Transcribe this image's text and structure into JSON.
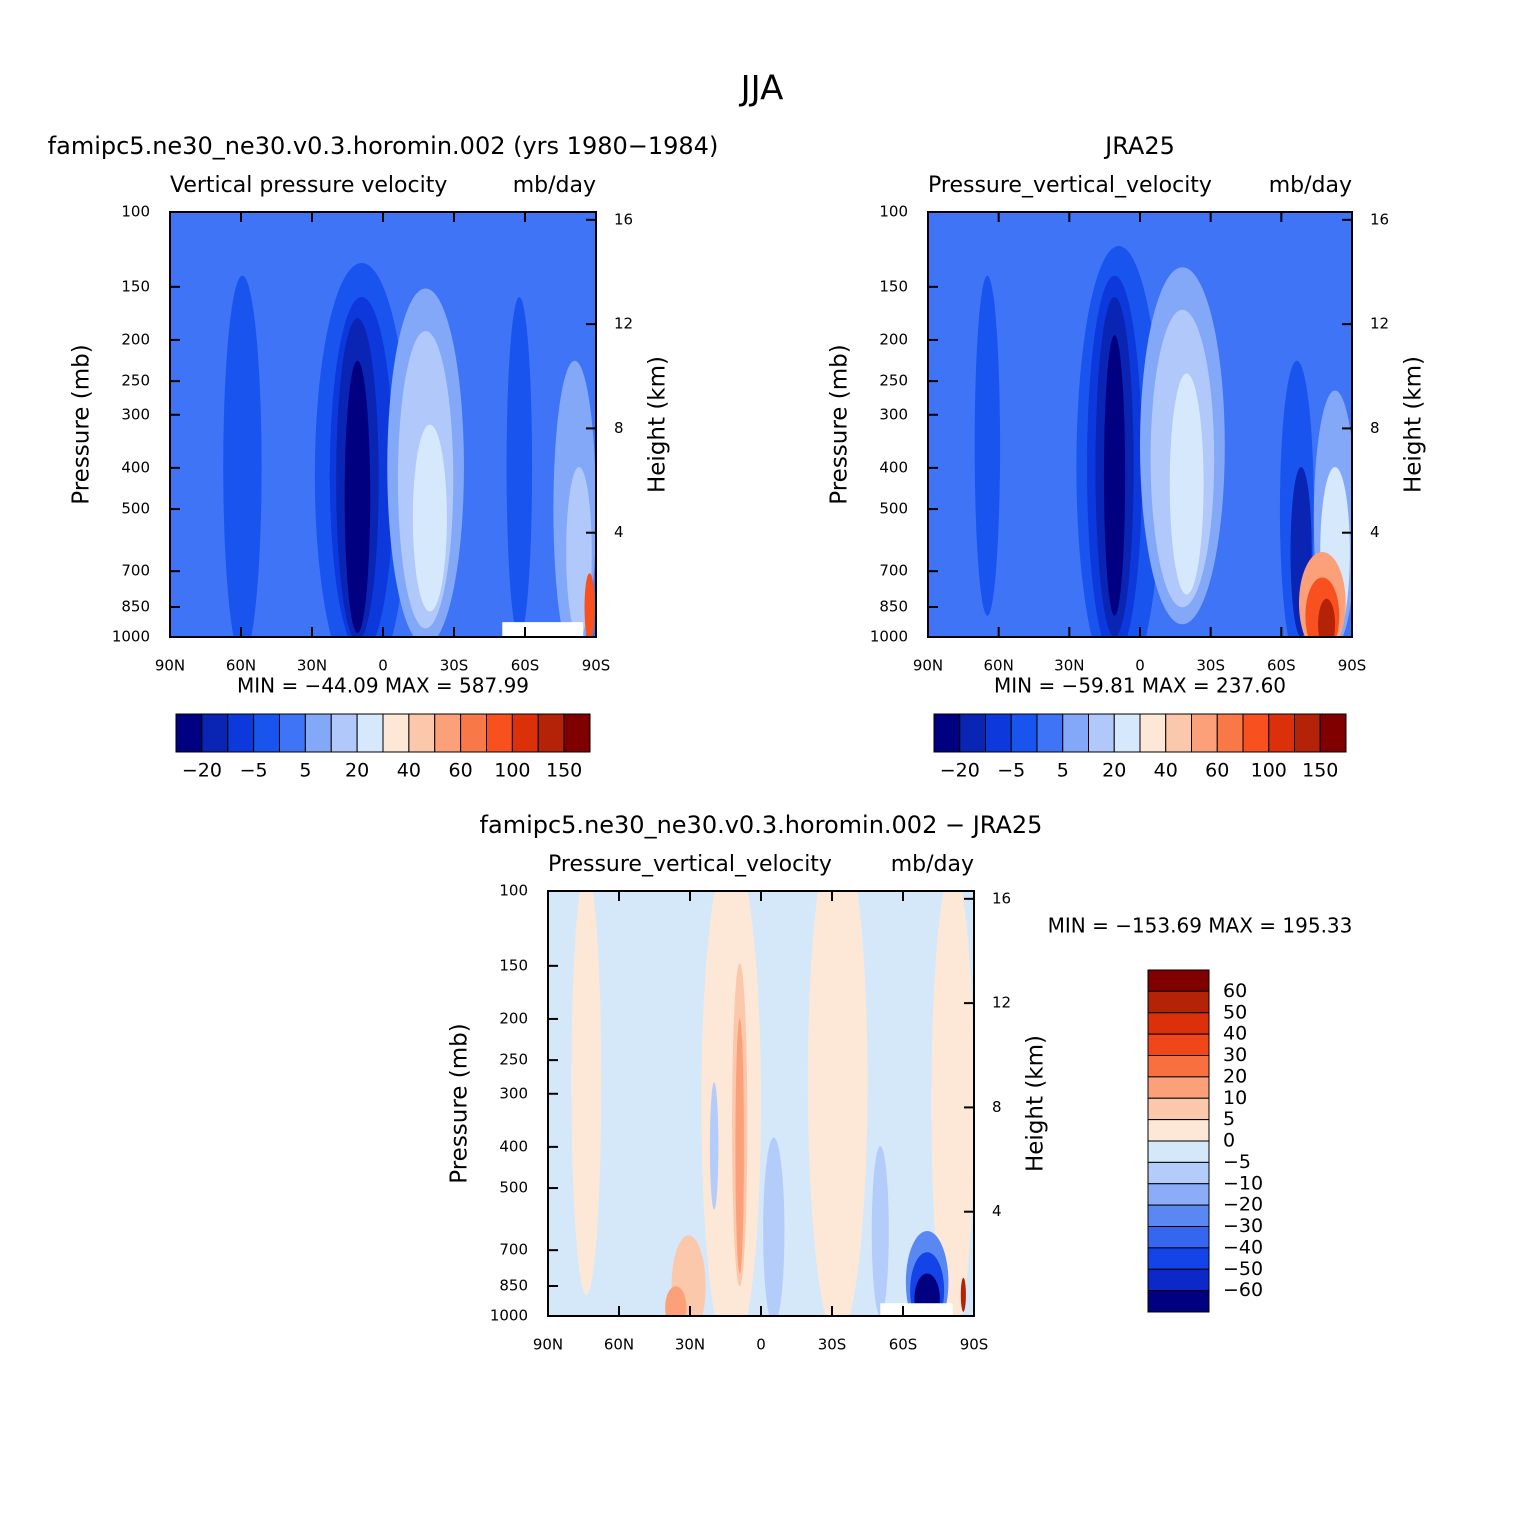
{
  "title": "JJA",
  "chart_data": [
    {
      "type": "contour",
      "title": "famipc5.ne30_ne30.v0.3.horomin.002 (yrs 1980−1984)",
      "subtitle": "Vertical pressure velocity",
      "units": "mb/day",
      "ylabel": "Pressure (mb)",
      "y2label": "Height (km)",
      "xlim": [
        90,
        -90
      ],
      "xticks": [
        {
          "value": 90,
          "label": "90N"
        },
        {
          "value": 60,
          "label": "60N"
        },
        {
          "value": 30,
          "label": "30N"
        },
        0,
        {
          "value": -30,
          "label": "30S"
        },
        {
          "value": -60,
          "label": "60S"
        },
        {
          "value": -90,
          "label": "90S"
        }
      ],
      "ylim": [
        1000,
        100
      ],
      "log_y": true,
      "yticks": [
        100,
        150,
        200,
        250,
        300,
        400,
        500,
        700,
        850,
        1000
      ],
      "y2lim": [
        0,
        16.3
      ],
      "y2ticks": [
        4,
        8,
        12,
        16
      ],
      "stats": "MIN = −44.09   MAX = 587.99",
      "colorbar": {
        "orientation": "horizontal",
        "colors": [
          "#000080",
          "#0a24b4",
          "#0c38dc",
          "#1a54ee",
          "#3f74f6",
          "#84a8f8",
          "#b0c8fa",
          "#d6e8fc",
          "#fde8d8",
          "#fcc8ac",
          "#fca07a",
          "#f87848",
          "#f8501e",
          "#dc300a",
          "#b42208",
          "#800000"
        ],
        "labels": [
          "−20",
          "−5",
          "5",
          "20",
          "40",
          "60",
          "100",
          "150"
        ]
      }
    },
    {
      "type": "contour",
      "title": "JRA25",
      "subtitle": "Pressure_vertical_velocity",
      "units": "mb/day",
      "ylabel": "Pressure (mb)",
      "y2label": "Height (km)",
      "xlim": [
        90,
        -90
      ],
      "xticks": [
        {
          "value": 90,
          "label": "90N"
        },
        {
          "value": 60,
          "label": "60N"
        },
        {
          "value": 30,
          "label": "30N"
        },
        0,
        {
          "value": -30,
          "label": "30S"
        },
        {
          "value": -60,
          "label": "60S"
        },
        {
          "value": -90,
          "label": "90S"
        }
      ],
      "ylim": [
        1000,
        100
      ],
      "log_y": true,
      "yticks": [
        100,
        150,
        200,
        250,
        300,
        400,
        500,
        700,
        850,
        1000
      ],
      "y2lim": [
        0,
        16.3
      ],
      "y2ticks": [
        4,
        8,
        12,
        16
      ],
      "stats": "MIN = −59.81   MAX = 237.60",
      "colorbar": {
        "orientation": "horizontal",
        "colors": [
          "#000080",
          "#0a24b4",
          "#0c38dc",
          "#1a54ee",
          "#3f74f6",
          "#84a8f8",
          "#b0c8fa",
          "#d6e8fc",
          "#fde8d8",
          "#fcc8ac",
          "#fca07a",
          "#f87848",
          "#f8501e",
          "#dc300a",
          "#b42208",
          "#800000"
        ],
        "labels": [
          "−20",
          "−5",
          "5",
          "20",
          "40",
          "60",
          "100",
          "150"
        ]
      }
    },
    {
      "type": "contour",
      "title": "famipc5.ne30_ne30.v0.3.horomin.002 − JRA25",
      "subtitle": "Pressure_vertical_velocity",
      "units": "mb/day",
      "ylabel": "Pressure (mb)",
      "y2label": "Height (km)",
      "xlim": [
        90,
        -90
      ],
      "xticks": [
        {
          "value": 90,
          "label": "90N"
        },
        {
          "value": 60,
          "label": "60N"
        },
        {
          "value": 30,
          "label": "30N"
        },
        0,
        {
          "value": -30,
          "label": "30S"
        },
        {
          "value": -60,
          "label": "60S"
        },
        {
          "value": -90,
          "label": "90S"
        }
      ],
      "ylim": [
        1000,
        100
      ],
      "log_y": true,
      "yticks": [
        100,
        150,
        200,
        250,
        300,
        400,
        500,
        700,
        850,
        1000
      ],
      "y2lim": [
        0,
        16.3
      ],
      "y2ticks": [
        4,
        8,
        12,
        16
      ],
      "stats": "MIN = −153.69   MAX = 195.33",
      "colorbar": {
        "orientation": "vertical",
        "colors": [
          "#800000",
          "#b42208",
          "#dc300a",
          "#f0461a",
          "#f87040",
          "#fca07a",
          "#fcc8ac",
          "#fde8d8",
          "#d4e8fa",
          "#b4ccfa",
          "#8cacf8",
          "#5a88f2",
          "#3466f0",
          "#1444e8",
          "#0c28c8",
          "#000080"
        ],
        "labels": [
          "60",
          "50",
          "40",
          "30",
          "20",
          "10",
          "5",
          "0",
          "−5",
          "−10",
          "−20",
          "−30",
          "−40",
          "−50",
          "−60"
        ]
      }
    }
  ]
}
